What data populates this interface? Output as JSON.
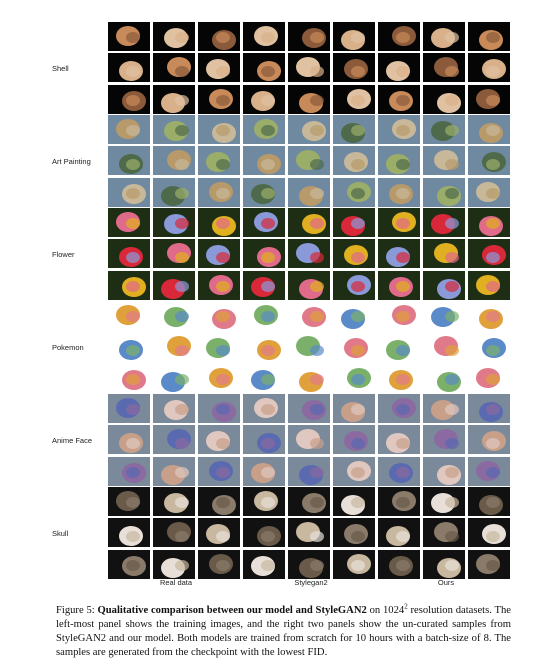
{
  "rows": [
    {
      "label": "Shell",
      "bg": "#050505",
      "fg": [
        "#c98a5a",
        "#e0c2a2",
        "#8a5a3a",
        "#d8b08a"
      ]
    },
    {
      "label": "Art Painting",
      "bg": "#6f8aa0",
      "fg": [
        "#9aae6a",
        "#c8b89a",
        "#4e6a4a",
        "#b89a6a"
      ]
    },
    {
      "label": "Flower",
      "bg": "#1e2e14",
      "fg": [
        "#e0b020",
        "#d8283a",
        "#e06a8a",
        "#8a9ad8"
      ]
    },
    {
      "label": "Pokemon",
      "bg": "#ffffff",
      "fg": [
        "#5a8ac8",
        "#e0a03a",
        "#7ab06a",
        "#e07a8a"
      ]
    },
    {
      "label": "Anime Face",
      "bg": "#7a8a9a",
      "fg": [
        "#5a6ab0",
        "#e0c8c0",
        "#8a6aa0",
        "#c8a08a"
      ]
    },
    {
      "label": "Skull",
      "bg": "#111111",
      "fg": [
        "#c8b8a0",
        "#8a7a6a",
        "#e8e0d8",
        "#6a5a4a"
      ]
    }
  ],
  "panels": [
    "Real data",
    "Stylegan2",
    "Ours"
  ],
  "caption": {
    "prefix": "Figure 5: ",
    "bold": "Qualitative comparison between our model and StyleGAN2",
    "mid1": " on 1024",
    "sup": "2",
    "rest": " resolution datasets. The left-most panel shows the training images, and the right two panels show the un-curated samples from StyleGAN2 and our model. Both models are trained from scratch for 10 hours with a batch-size of 8. The samples are generated from the checkpoint with the lowest FID."
  }
}
